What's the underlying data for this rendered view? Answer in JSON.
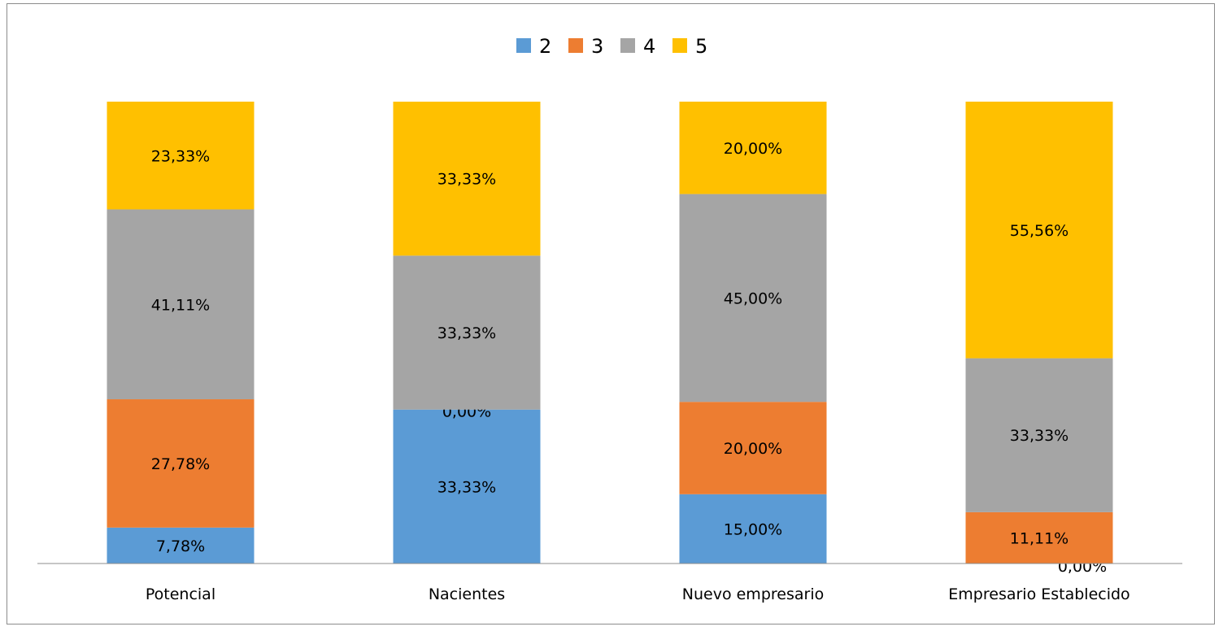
{
  "chart_data": {
    "type": "bar",
    "stacked": true,
    "categories": [
      "Potencial",
      "Nacientes",
      "Nuevo empresario",
      "Empresario Establecido"
    ],
    "series": [
      {
        "name": "2",
        "color": "#5B9BD5",
        "values": [
          7.78,
          33.33,
          15.0,
          0.0
        ],
        "labels": [
          "7,78%",
          "33,33%",
          "15,00%",
          "0,00%"
        ]
      },
      {
        "name": "3",
        "color": "#ED7D31",
        "values": [
          27.78,
          0.0,
          20.0,
          11.11
        ],
        "labels": [
          "27,78%",
          "0,00%",
          "20,00%",
          "11,11%"
        ]
      },
      {
        "name": "4",
        "color": "#A5A5A5",
        "values": [
          41.11,
          33.33,
          45.0,
          33.33
        ],
        "labels": [
          "41,11%",
          "33,33%",
          "45,00%",
          "33,33%"
        ]
      },
      {
        "name": "5",
        "color": "#FFC000",
        "values": [
          23.33,
          33.33,
          20.0,
          55.56
        ],
        "labels": [
          "23,33%",
          "33,33%",
          "20,00%",
          "55,56%"
        ]
      }
    ],
    "ylim": [
      0,
      100
    ],
    "grid": false,
    "legend_position": "top"
  }
}
